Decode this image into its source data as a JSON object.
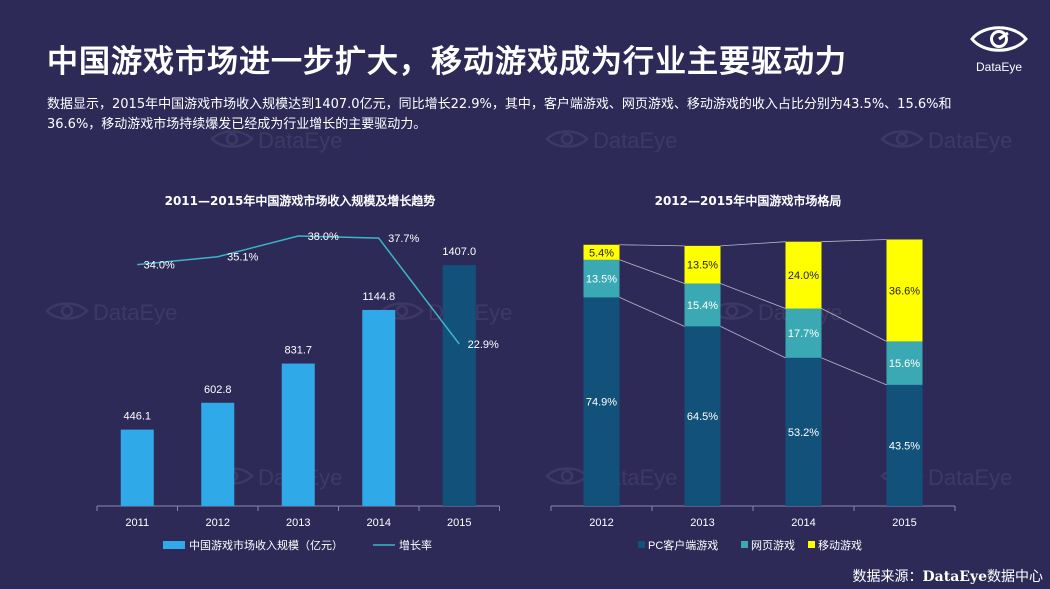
{
  "title": "中国游戏市场进一步扩大，移动游戏成为行业主要驱动力",
  "logo": {
    "name": "DataEye",
    "icon": "eye-logo-icon"
  },
  "description": "数据显示，2015年中国游戏市场收入规模达到1407.0亿元，同比增长22.9%，其中，客户端游戏、网页游戏、移动游戏的收入占比分别为43.5%、15.6%和36.6%，移动游戏市场持续爆发已经成为行业增长的主要驱动力。",
  "watermark_text": "DataEye",
  "source": {
    "label": "数据来源：",
    "brand": "DataEye",
    "suffix": "数据中心"
  },
  "colors": {
    "background": "#2e2a58",
    "bar_light": "#2fa9e8",
    "bar_dark": "#12527a",
    "line": "#3cb4c4",
    "pc": "#12527a",
    "web": "#3aa9b4",
    "mobile": "#ffff00"
  },
  "chart_data": [
    {
      "type": "bar",
      "title": "2011—2015年中国游戏市场收入规模及增长趋势",
      "categories": [
        "2011",
        "2012",
        "2013",
        "2014",
        "2015"
      ],
      "series": [
        {
          "name": "中国游戏市场收入规模（亿元）",
          "type": "bar",
          "values": [
            446.1,
            602.8,
            831.7,
            1144.8,
            1407.0
          ],
          "labels": [
            "446.1",
            "602.8",
            "831.7",
            "1144.8",
            "1407.0"
          ]
        },
        {
          "name": "增长率",
          "type": "line",
          "values": [
            34.0,
            35.1,
            38.0,
            37.7,
            22.9
          ],
          "labels": [
            "34.0%",
            "35.1%",
            "38.0%",
            "37.7%",
            "22.9%"
          ]
        }
      ],
      "ylim": [
        0,
        1600
      ],
      "y2lim": [
        -20,
        45
      ],
      "legend": "bottom"
    },
    {
      "type": "bar",
      "stacked": true,
      "title": "2012—2015年中国游戏市场格局",
      "categories": [
        "2012",
        "2013",
        "2014",
        "2015"
      ],
      "series": [
        {
          "name": "PC客户端游戏",
          "values": [
            74.9,
            64.5,
            53.2,
            43.5
          ],
          "labels": [
            "74.9%",
            "64.5%",
            "53.2%",
            "43.5%"
          ]
        },
        {
          "name": "网页游戏",
          "values": [
            13.5,
            15.4,
            17.7,
            15.6
          ],
          "labels": [
            "13.5%",
            "15.4%",
            "17.7%",
            "15.6%"
          ]
        },
        {
          "name": "移动游戏",
          "values": [
            5.4,
            13.5,
            24.0,
            36.6
          ],
          "labels": [
            "5.4%",
            "13.5%",
            "24.0%",
            "36.6%"
          ]
        }
      ],
      "ylim": [
        0,
        100
      ],
      "legend": "bottom"
    }
  ]
}
